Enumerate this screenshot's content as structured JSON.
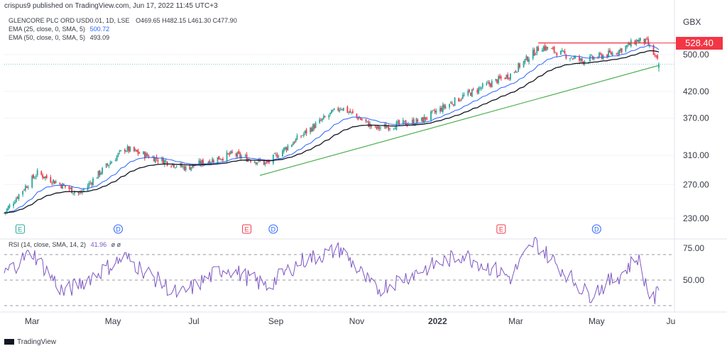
{
  "header": {
    "publisher": "crispus9 published on TradingView.com, Jun 17, 2022 11:45 UTC+3"
  },
  "legend": {
    "symbol": "GLENCORE PLC ORD USD0.01, 1D, LSE",
    "ohlc": "O469.65  H482.15  L461.30  C477.90",
    "ema25_label": "EMA (25, close, 0, SMA, 5)",
    "ema25_value": "500.72",
    "ema50_label": "EMA (50, close, 0, SMA, 5)",
    "ema50_value": "493.09",
    "rsi_label": "RSI (14, close, SMA, 14, 2)",
    "rsi_value": "41.96",
    "rsi_extra": "ø ø"
  },
  "currency": "GBX",
  "resistance_badge": "528.40",
  "footer": {
    "brand": "TradingView"
  },
  "colors": {
    "up": "#26a69a",
    "down": "#f23645",
    "ema25": "#2962ff",
    "ema50": "#131722",
    "trend": "#4caf50",
    "resistance": "#f23645",
    "rsi": "#7e57c2",
    "price_line": "#26a69a"
  },
  "chart_data": {
    "type": "candlestick",
    "scale": "log",
    "price_axis_ticks": [
      "528.40",
      "500.00",
      "420.00",
      "370.00",
      "310.00",
      "270.00",
      "230.00"
    ],
    "rsi_axis_ticks": [
      "75.00",
      "50.00"
    ],
    "x_axis_ticks": [
      "Mar",
      "May",
      "Jul",
      "Sep",
      "Nov",
      "2022",
      "Mar",
      "May",
      "Ju"
    ],
    "date_range": [
      "2021-02-08",
      "2022-06-17"
    ],
    "anchors": [
      {
        "date": "2021-02-08",
        "close": 236
      },
      {
        "date": "2021-03-05",
        "close": 285
      },
      {
        "date": "2021-04-06",
        "close": 258
      },
      {
        "date": "2021-05-10",
        "close": 320
      },
      {
        "date": "2021-06-25",
        "close": 292
      },
      {
        "date": "2021-07-30",
        "close": 312
      },
      {
        "date": "2021-08-25",
        "close": 298
      },
      {
        "date": "2021-09-20",
        "close": 340
      },
      {
        "date": "2021-10-20",
        "close": 390
      },
      {
        "date": "2021-11-15",
        "close": 352
      },
      {
        "date": "2021-12-20",
        "close": 366
      },
      {
        "date": "2022-01-20",
        "close": 410
      },
      {
        "date": "2022-02-25",
        "close": 455
      },
      {
        "date": "2022-03-20",
        "close": 520
      },
      {
        "date": "2022-04-20",
        "close": 485
      },
      {
        "date": "2022-05-15",
        "close": 505
      },
      {
        "date": "2022-06-01",
        "close": 535
      },
      {
        "date": "2022-06-08",
        "close": 530
      },
      {
        "date": "2022-06-17",
        "close": 477.9
      }
    ],
    "last_candle": {
      "open": 469.65,
      "high": 482.15,
      "low": 461.3,
      "close": 477.9
    },
    "ema25_last": 500.72,
    "ema50_last": 493.09,
    "resistance": {
      "value": 528.4,
      "from": "2022-03-18",
      "to": "2022-06-10"
    },
    "trendline": {
      "from": {
        "date": "2021-08-20",
        "value": 282
      },
      "to": {
        "date": "2022-06-17",
        "value": 475
      }
    },
    "rsi": {
      "last": 41.96,
      "overbought": 70,
      "oversold": 30,
      "anchors": [
        {
          "date": "2021-02-08",
          "value": 55
        },
        {
          "date": "2021-03-01",
          "value": 72
        },
        {
          "date": "2021-03-25",
          "value": 40
        },
        {
          "date": "2021-05-10",
          "value": 68
        },
        {
          "date": "2021-06-20",
          "value": 38
        },
        {
          "date": "2021-07-25",
          "value": 60
        },
        {
          "date": "2021-08-25",
          "value": 45
        },
        {
          "date": "2021-09-20",
          "value": 65
        },
        {
          "date": "2021-10-20",
          "value": 74
        },
        {
          "date": "2021-11-15",
          "value": 42
        },
        {
          "date": "2021-12-20",
          "value": 58
        },
        {
          "date": "2022-01-20",
          "value": 70
        },
        {
          "date": "2022-02-25",
          "value": 52
        },
        {
          "date": "2022-03-15",
          "value": 80
        },
        {
          "date": "2022-04-25",
          "value": 38
        },
        {
          "date": "2022-05-20",
          "value": 55
        },
        {
          "date": "2022-06-01",
          "value": 68
        },
        {
          "date": "2022-06-12",
          "value": 32
        },
        {
          "date": "2022-06-17",
          "value": 41.96
        }
      ]
    },
    "event_markers": [
      {
        "label": "E",
        "date": "2021-02-20",
        "kind": "earnings-past"
      },
      {
        "label": "D",
        "date": "2021-05-05",
        "kind": "dividend"
      },
      {
        "label": "E",
        "date": "2021-08-10",
        "kind": "earnings"
      },
      {
        "label": "D",
        "date": "2021-08-30",
        "kind": "dividend"
      },
      {
        "label": "E",
        "date": "2022-02-18",
        "kind": "earnings"
      },
      {
        "label": "D",
        "date": "2022-05-01",
        "kind": "dividend"
      }
    ]
  }
}
